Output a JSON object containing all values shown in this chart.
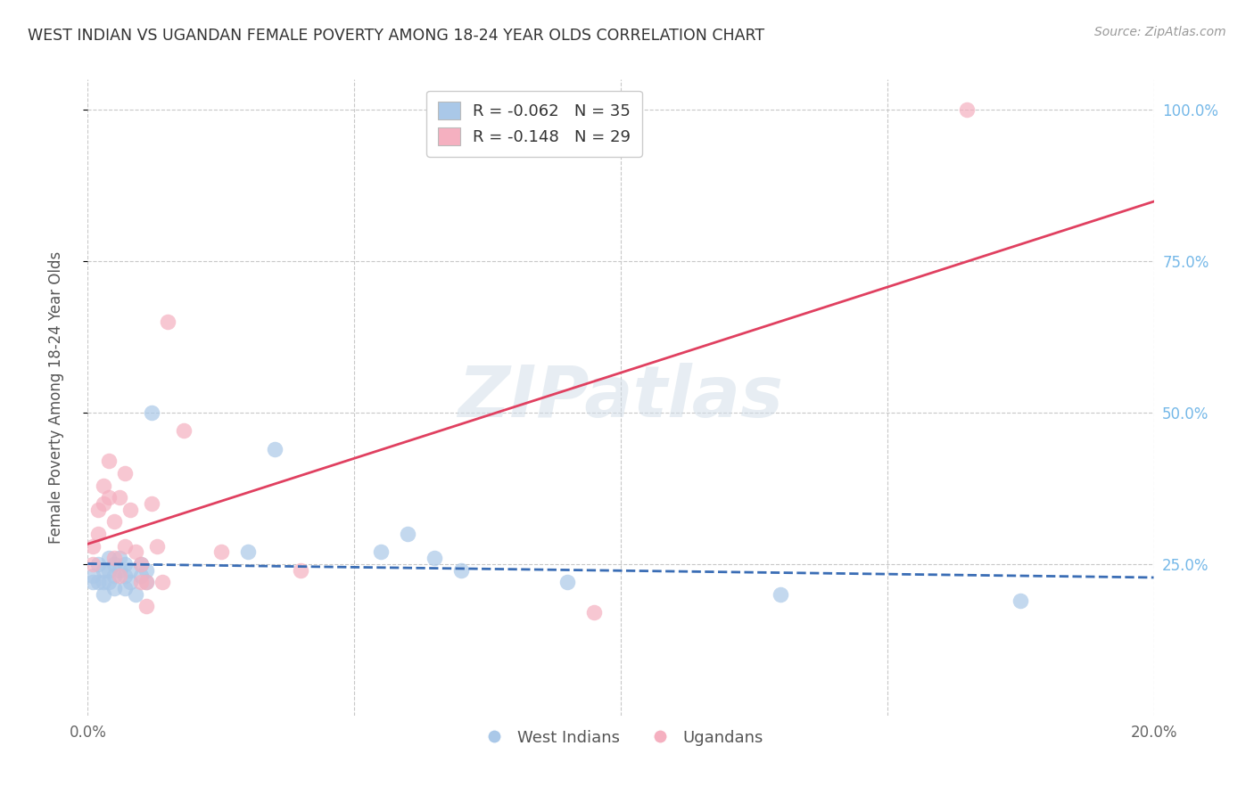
{
  "title": "WEST INDIAN VS UGANDAN FEMALE POVERTY AMONG 18-24 YEAR OLDS CORRELATION CHART",
  "source": "Source: ZipAtlas.com",
  "ylabel": "Female Poverty Among 18-24 Year Olds",
  "xlim": [
    0.0,
    0.2
  ],
  "ylim": [
    0.0,
    1.05
  ],
  "yticks": [
    0.25,
    0.5,
    0.75,
    1.0
  ],
  "ytick_labels": [
    "25.0%",
    "50.0%",
    "75.0%",
    "100.0%"
  ],
  "xticks": [
    0.0,
    0.05,
    0.1,
    0.15,
    0.2
  ],
  "xtick_labels": [
    "0.0%",
    "",
    "",
    "",
    "20.0%"
  ],
  "west_indian_R": -0.062,
  "west_indian_N": 35,
  "ugandan_R": -0.148,
  "ugandan_N": 29,
  "wi_color": "#aac8e8",
  "ug_color": "#f5b0c0",
  "wi_line_color": "#3a6db5",
  "ug_line_color": "#e04060",
  "right_tick_color": "#75b8e8",
  "bg_color": "#ffffff",
  "grid_color": "#c8c8c8",
  "wi_x": [
    0.001,
    0.001,
    0.002,
    0.002,
    0.003,
    0.003,
    0.003,
    0.004,
    0.004,
    0.004,
    0.005,
    0.005,
    0.005,
    0.006,
    0.006,
    0.007,
    0.007,
    0.007,
    0.008,
    0.008,
    0.009,
    0.01,
    0.01,
    0.011,
    0.011,
    0.012,
    0.03,
    0.035,
    0.055,
    0.06,
    0.065,
    0.07,
    0.09,
    0.13,
    0.175
  ],
  "wi_y": [
    0.23,
    0.22,
    0.25,
    0.22,
    0.24,
    0.22,
    0.2,
    0.26,
    0.24,
    0.22,
    0.25,
    0.23,
    0.21,
    0.26,
    0.24,
    0.25,
    0.23,
    0.21,
    0.24,
    0.22,
    0.2,
    0.25,
    0.23,
    0.24,
    0.22,
    0.5,
    0.27,
    0.44,
    0.27,
    0.3,
    0.26,
    0.24,
    0.22,
    0.2,
    0.19
  ],
  "ug_x": [
    0.001,
    0.001,
    0.002,
    0.002,
    0.003,
    0.003,
    0.004,
    0.004,
    0.005,
    0.005,
    0.006,
    0.006,
    0.007,
    0.007,
    0.008,
    0.009,
    0.01,
    0.01,
    0.011,
    0.011,
    0.012,
    0.013,
    0.014,
    0.015,
    0.018,
    0.025,
    0.04,
    0.095,
    0.165
  ],
  "ug_y": [
    0.28,
    0.25,
    0.34,
    0.3,
    0.38,
    0.35,
    0.42,
    0.36,
    0.32,
    0.26,
    0.36,
    0.23,
    0.4,
    0.28,
    0.34,
    0.27,
    0.25,
    0.22,
    0.22,
    0.18,
    0.35,
    0.28,
    0.22,
    0.65,
    0.47,
    0.27,
    0.24,
    0.17,
    1.0
  ],
  "watermark_text": "ZIPatlas"
}
